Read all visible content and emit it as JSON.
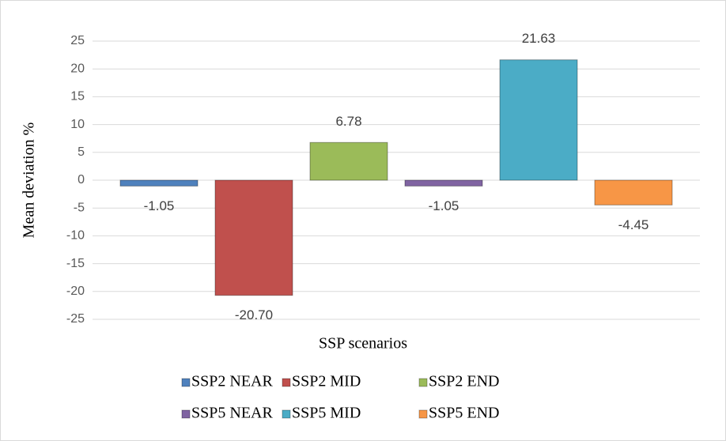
{
  "chart_data": {
    "type": "bar",
    "x_label": "SSP scenarios",
    "y_label": "Mean deviation %",
    "categories": [
      null
    ],
    "series": [
      {
        "name": "SSP2 NEAR",
        "color": "#4f81bd",
        "values": [
          -1.05
        ]
      },
      {
        "name": "SSP2 MID",
        "color": "#c0504d",
        "values": [
          -20.7
        ],
        "value_labels": [
          "-20.70"
        ]
      },
      {
        "name": "SSP2 END",
        "color": "#9bbb59",
        "values": [
          6.78
        ]
      },
      {
        "name": "SSP5 NEAR",
        "color": "#8064a2",
        "values": [
          -1.05
        ]
      },
      {
        "name": "SSP5 MID",
        "color": "#4bacc6",
        "values": [
          21.63
        ]
      },
      {
        "name": "SSP5 END",
        "color": "#f79646",
        "values": [
          -4.45
        ]
      }
    ],
    "ylim": [
      -25,
      25
    ],
    "yticks": [
      -25,
      -20,
      -15,
      -10,
      -5,
      0,
      5,
      10,
      15,
      20,
      25
    ],
    "grid": true,
    "legend": "bottom"
  }
}
